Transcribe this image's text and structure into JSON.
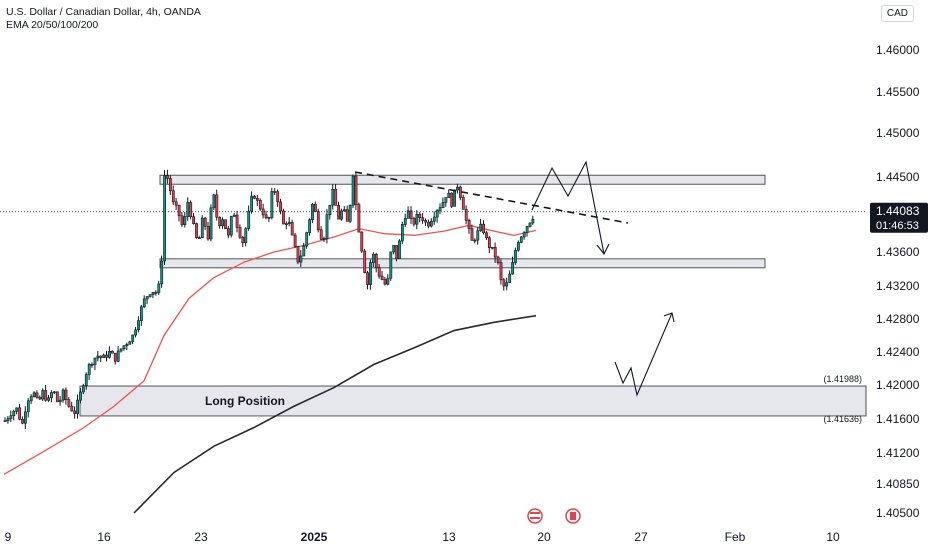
{
  "header": {
    "symbol": "U.S. Dollar / Canadian Dollar, 4h, OANDA",
    "indicator": "EMA 20/50/100/200"
  },
  "currency": "CAD",
  "price_badge": {
    "price": "1.44083",
    "countdown": "01:46:53"
  },
  "colors": {
    "up": "#089981",
    "down": "#f23645",
    "candle_outline": "#131722",
    "ema50": "#ef5350",
    "ema200": "#2a2a2a",
    "zone_fill": "#d1d4dc",
    "badge_bg": "#131722"
  },
  "chart_data": {
    "type": "candlestick",
    "title": "U.S. Dollar / Canadian Dollar, 4h, OANDA",
    "y_ticks": [
      "1.46000",
      "1.45500",
      "1.45000",
      "1.44500",
      "1.43600",
      "1.43200",
      "1.42800",
      "1.42400",
      "1.42000",
      "1.41600",
      "1.41200",
      "1.40850",
      "1.40500"
    ],
    "x_ticks": [
      "9",
      "16",
      "23",
      "2025",
      "13",
      "20",
      "27",
      "Feb",
      "10"
    ],
    "x_ticks_bold": [
      "2025"
    ],
    "current_price": 1.44083,
    "zones": [
      {
        "name": "resistance-zone",
        "top": 1.4452,
        "bottom": 1.4442
      },
      {
        "name": "support-zone",
        "top": 1.4352,
        "bottom": 1.4342
      },
      {
        "name": "long-position-zone",
        "label": "Long Position",
        "top": 1.41988,
        "bottom": 1.41636,
        "top_label": "(1.41988)",
        "bottom_label": "(1.41636)"
      }
    ],
    "series": [
      {
        "name": "EMA 50",
        "kind": "line"
      },
      {
        "name": "EMA 200",
        "kind": "line"
      }
    ]
  }
}
